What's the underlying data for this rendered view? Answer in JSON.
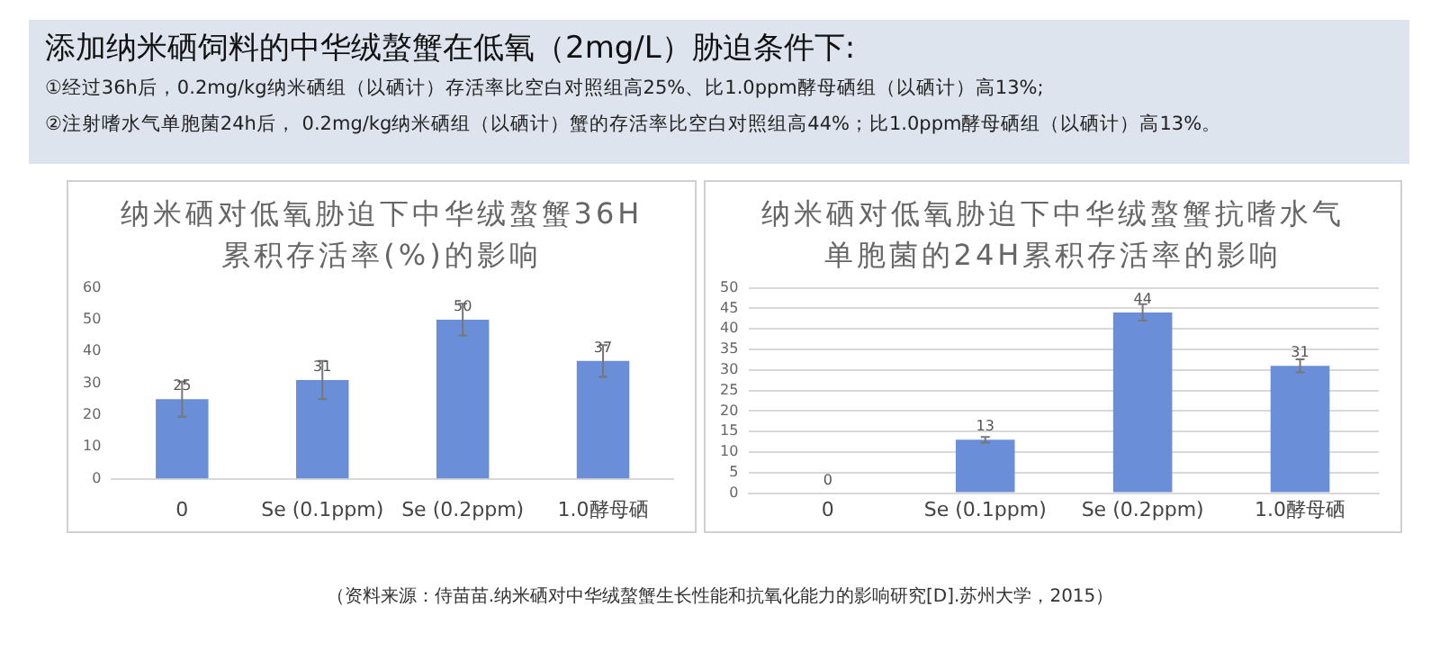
{
  "chart_data": [
    {
      "type": "other",
      "title": "添加纳米硒饲料的中华绒螯蟹在低氧（2mg/L）胁迫条件下:",
      "annotations": [
        "①经过36h后，0.2mg/kg纳米硒组（以硒计）存活率比空白对照组高25%、比1.0ppm酵母硒组（以硒计）高13%;",
        "②注射嗜水气单胞菌24h后， 0.2mg/kg纳米硒组（以硒计）蟹的存活率比空白对照组高44%；比1.0ppm酵母硒组（以硒计）高13%。"
      ]
    },
    {
      "type": "bar",
      "title": "纳米硒对低氧胁迫下中华绒螯蟹36H累积存活率(%)的影响",
      "categories": [
        "0",
        "Se (0.1ppm)",
        "Se (0.2ppm)",
        "1.0酵母硒"
      ],
      "values": [
        25,
        31,
        50,
        37
      ],
      "errors": [
        5.5,
        6,
        5,
        5
      ],
      "color": "#6a8fd8",
      "ylim": [
        0,
        60
      ],
      "yticks": [
        0,
        10,
        20,
        30,
        40,
        50,
        60
      ],
      "grid": false,
      "data_labels": true
    },
    {
      "type": "bar",
      "title": "纳米硒对低氧胁迫下中华绒螯蟹抗嗜水气单胞菌的24H累积存活率的影响",
      "categories": [
        "0",
        "Se (0.1ppm)",
        "Se (0.2ppm)",
        "1.0酵母硒"
      ],
      "values": [
        0,
        13,
        44,
        31
      ],
      "errors": [
        null,
        0.7,
        2,
        1.6
      ],
      "color": "#6a8fd8",
      "ylim": [
        0,
        50
      ],
      "yticks": [
        0,
        5,
        10,
        15,
        20,
        25,
        30,
        35,
        40,
        45,
        50
      ],
      "grid": "y",
      "data_labels": true,
      "annotations": [
        "（资料来源：侍苗苗.纳米硒对中华绒螯蟹生长性能和抗氧化能力的影响研究[D].苏州大学，2015）"
      ]
    }
  ]
}
